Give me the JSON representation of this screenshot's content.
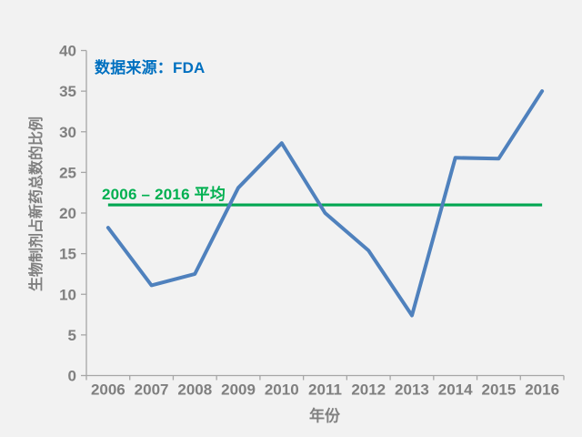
{
  "canvas": {
    "background": "#F2F2F2"
  },
  "chart_data": {
    "type": "line",
    "title": "",
    "categories": [
      "2006",
      "2007",
      "2008",
      "2009",
      "2010",
      "2011",
      "2012",
      "2013",
      "2014",
      "2015",
      "2016"
    ],
    "series": [
      {
        "name": "生物制剂占新药总数的比例",
        "color": "#4F81BD",
        "values": [
          18.2,
          11.1,
          12.5,
          23.1,
          28.6,
          20.0,
          15.4,
          7.4,
          26.8,
          26.7,
          35.0
        ]
      },
      {
        "name": "2006 – 2016 平均",
        "type": "reference-line",
        "color": "#00A651",
        "value": 21
      }
    ],
    "xlabel": "年份",
    "ylabel": "生物制剂占新药总数的比例",
    "ylim": [
      0,
      40
    ],
    "y_ticks": [
      0,
      5,
      10,
      15,
      20,
      25,
      30,
      35,
      40
    ],
    "grid": false,
    "legend_position": "none",
    "axis_color": "#A6A6A6",
    "tick_label_color": "#808080"
  },
  "annotations": {
    "source_label": "数据来源：FDA",
    "source_color": "#0070C0",
    "average_label": "2006 – 2016 平均",
    "average_color": "#00B050"
  }
}
